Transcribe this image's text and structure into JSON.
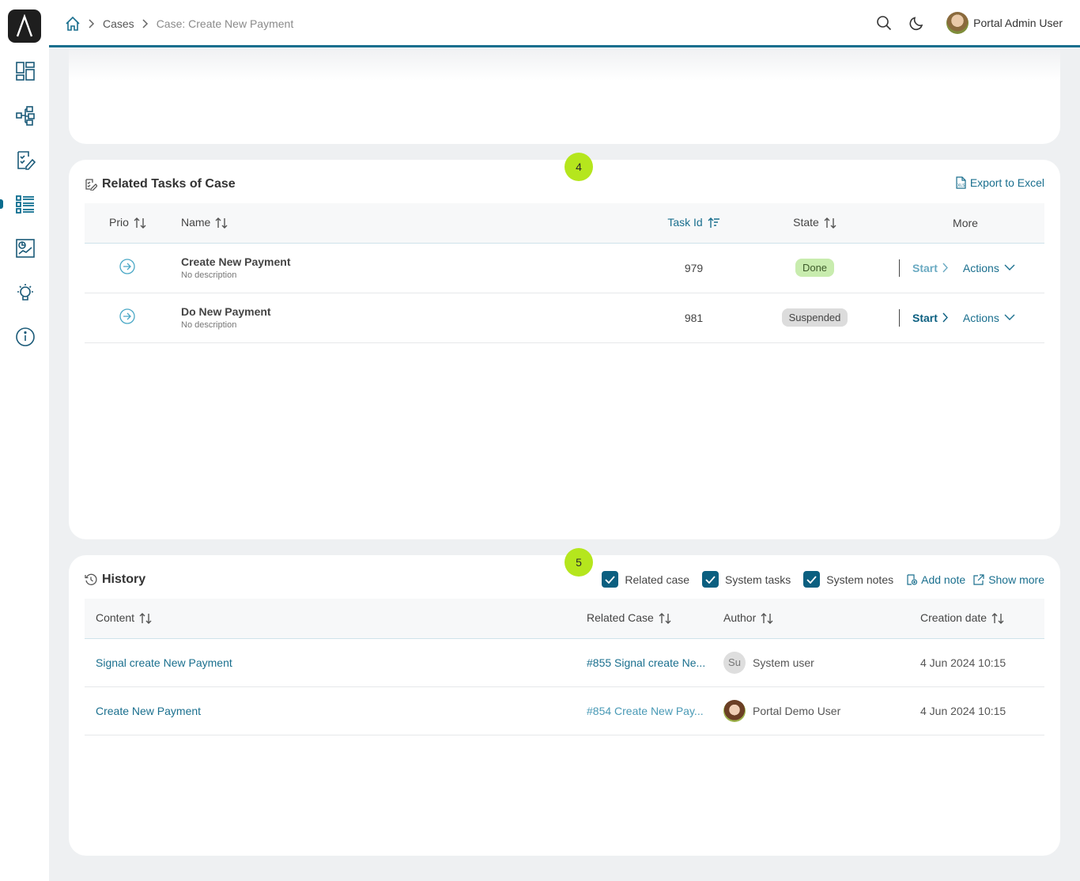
{
  "breadcrumb": {
    "home_icon": "home-icon",
    "items": [
      "Cases",
      "Case: Create New Payment"
    ]
  },
  "header": {
    "user_name": "Portal Admin User",
    "search_icon": "search-icon",
    "theme_icon": "moon-icon"
  },
  "sidebar": {
    "items": [
      "dashboard-icon",
      "process-icon",
      "tasks-icon",
      "cases-icon",
      "statistics-icon",
      "idea-icon",
      "info-icon"
    ],
    "active": "cases-icon"
  },
  "tasks": {
    "badge": "4",
    "title": "Related Tasks of Case",
    "export_label": "Export to Excel",
    "columns": [
      "Prio",
      "Name",
      "Task Id",
      "State",
      "More"
    ],
    "rows": [
      {
        "name": "Create New Payment",
        "description": "No description",
        "id": "979",
        "state": "Done",
        "start": "Start",
        "actions": "Actions"
      },
      {
        "name": "Do New Payment",
        "description": "No description",
        "id": "981",
        "state": "Suspended",
        "start": "Start",
        "actions": "Actions"
      }
    ]
  },
  "history": {
    "badge": "5",
    "title": "History",
    "filters": [
      "Related case",
      "System tasks",
      "System notes"
    ],
    "add_note": "Add note",
    "show_more": "Show more",
    "columns": [
      "Content",
      "Related Case",
      "Author",
      "Creation date"
    ],
    "rows": [
      {
        "content": "Signal create New Payment",
        "related_case": "#855 Signal create Ne...",
        "author": "System user",
        "author_initials": "Su",
        "date": "4 Jun 2024 10:15"
      },
      {
        "content": "Create New Payment",
        "related_case": "#854 Create New Pay...",
        "author": "Portal Demo User",
        "author_initials": "",
        "date": "4 Jun 2024 10:15"
      }
    ]
  },
  "colors": {
    "accent": "#1a6f8e",
    "badge": "#b5e61d",
    "done": "#c8ecae",
    "suspended": "#dcdcdc"
  }
}
